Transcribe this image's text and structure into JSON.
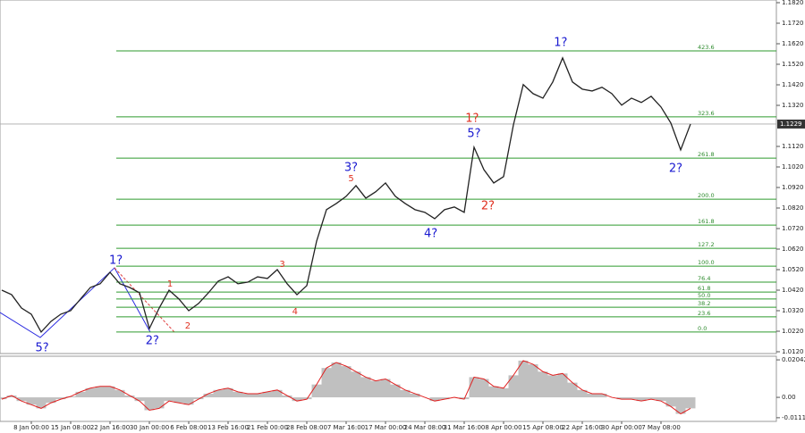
{
  "chart_data": {
    "type": "line",
    "color": "#222222",
    "categories": [
      null,
      null,
      null,
      "8 Jan 00:00",
      null,
      null,
      null,
      "15 Jan 08:00",
      null,
      null,
      null,
      "22 Jan 16:00",
      null,
      null,
      null,
      "30 Jan 00:00",
      null,
      null,
      null,
      "6 Feb 08:00",
      null,
      null,
      null,
      "13 Feb 16:00",
      null,
      null,
      null,
      "21 Feb 00:00",
      null,
      null,
      null,
      "28 Feb 08:00",
      null,
      null,
      null,
      "7 Mar 16:00",
      null,
      null,
      null,
      "17 Mar 00:00",
      null,
      null,
      null,
      "24 Mar 08:00",
      null,
      null,
      null,
      "31 Mar 16:00",
      null,
      null,
      null,
      "8 Apr 00:00",
      null,
      null,
      null,
      "15 Apr 08:00",
      null,
      null,
      null,
      "22 Apr 16:00",
      null,
      null,
      null,
      "30 Apr 00:00",
      null,
      null,
      null,
      "7 May 08:00",
      null,
      null,
      null
    ],
    "values": [
      1.042,
      1.0398,
      1.0333,
      1.0303,
      1.0216,
      1.0268,
      1.0303,
      1.032,
      1.0377,
      1.0433,
      1.0451,
      1.0507,
      1.0451,
      1.0433,
      1.0407,
      1.0233,
      1.0333,
      1.042,
      1.0377,
      1.032,
      1.0355,
      1.0407,
      1.0464,
      1.0485,
      1.0451,
      1.0459,
      1.0485,
      1.0477,
      1.052,
      1.0451,
      1.0398,
      1.0442,
      1.0659,
      1.0812,
      1.0842,
      1.0877,
      1.0929,
      1.0868,
      1.0899,
      1.0942,
      1.0877,
      1.0842,
      1.0812,
      1.0799,
      1.0768,
      1.0812,
      1.0825,
      1.0799,
      1.1116,
      1.1007,
      1.0942,
      1.0973,
      1.1225,
      1.1421,
      1.1377,
      1.1355,
      1.1434,
      1.1551,
      1.1434,
      1.1399,
      1.139,
      1.1408,
      1.1377,
      1.1321,
      1.1355,
      1.1334,
      1.1364,
      1.1312,
      1.1234,
      1.1103,
      1.1229
    ],
    "ylim": [
      1.012,
      1.182
    ],
    "yticks": [
      {
        "value": 1.012,
        "label": "1.0120"
      },
      {
        "value": 1.022,
        "label": "1.0220"
      },
      {
        "value": 1.032,
        "label": "1.0320"
      },
      {
        "value": 1.042,
        "label": "1.0420"
      },
      {
        "value": 1.052,
        "label": "1.0520"
      },
      {
        "value": 1.062,
        "label": "1.0620"
      },
      {
        "value": 1.072,
        "label": "1.0720"
      },
      {
        "value": 1.082,
        "label": "1.0820"
      },
      {
        "value": 1.092,
        "label": "1.0920"
      },
      {
        "value": 1.102,
        "label": "1.1020"
      },
      {
        "value": 1.112,
        "label": "1.1120"
      },
      {
        "value": 1.132,
        "label": "1.1320"
      },
      {
        "value": 1.142,
        "label": "1.1420"
      },
      {
        "value": 1.152,
        "label": "1.1520"
      },
      {
        "value": 1.162,
        "label": "1.1620"
      },
      {
        "value": 1.172,
        "label": "1.1720"
      },
      {
        "value": 1.182,
        "label": "1.1820"
      }
    ],
    "last_price": {
      "value": 1.1229,
      "label": "1.1229"
    },
    "fib_color": "#2e9a2e",
    "fib_levels": [
      {
        "label": "423.6",
        "price": 1.1585
      },
      {
        "label": "323.6",
        "price": 1.1264
      },
      {
        "label": "261.8",
        "price": 1.1063
      },
      {
        "label": "200.0",
        "price": 1.0863
      },
      {
        "label": "161.8",
        "price": 1.0737
      },
      {
        "label": "127.2",
        "price": 1.0624
      },
      {
        "label": "100.0",
        "price": 1.0537
      },
      {
        "label": "76.4",
        "price": 1.0459
      },
      {
        "label": "61.8",
        "price": 1.0411
      },
      {
        "label": "50.0",
        "price": 1.0377
      },
      {
        "label": "38.2",
        "price": 1.0337
      },
      {
        "label": "23.6",
        "price": 1.029
      },
      {
        "label": "0.0",
        "price": 1.0216
      }
    ],
    "annotations": [
      {
        "text": "5?",
        "color": "#1a1ad0",
        "index": 4.1,
        "price": 1.0137
      },
      {
        "text": "1?",
        "color": "#1a1ad0",
        "index": 11.6,
        "price": 1.0563
      },
      {
        "text": "2?",
        "color": "#1a1ad0",
        "index": 15.3,
        "price": 1.0172
      },
      {
        "text": "1",
        "color": "#e03020",
        "index": 17.1,
        "price": 1.045
      },
      {
        "text": "2",
        "color": "#e03020",
        "index": 18.9,
        "price": 1.0246
      },
      {
        "text": "3",
        "color": "#e03020",
        "index": 28.5,
        "price": 1.0546
      },
      {
        "text": "4",
        "color": "#e03020",
        "index": 29.8,
        "price": 1.0316
      },
      {
        "text": "3?",
        "color": "#1a1ad0",
        "index": 35.5,
        "price": 1.1016
      },
      {
        "text": "5",
        "color": "#e03020",
        "index": 35.5,
        "price": 1.0963
      },
      {
        "text": "4?",
        "color": "#1a1ad0",
        "index": 43.6,
        "price": 1.0694
      },
      {
        "text": "5?",
        "color": "#1a1ad0",
        "index": 48,
        "price": 1.1181
      },
      {
        "text": "1?",
        "color": "#e03020",
        "index": 47.8,
        "price": 1.1255
      },
      {
        "text": "2?",
        "color": "#e03020",
        "index": 49.4,
        "price": 1.0829
      },
      {
        "text": "1?",
        "color": "#1a1ad0",
        "index": 56.8,
        "price": 1.1624
      },
      {
        "text": "2?",
        "color": "#1a1ad0",
        "index": 68.5,
        "price": 1.1011
      }
    ],
    "oscillator": {
      "bar_color": "#c0c0c0",
      "line_color": "#e02020",
      "values": [
        -0.001,
        0.001,
        -0.002,
        -0.004,
        -0.006,
        -0.003,
        -0.001,
        0.0005,
        0.003,
        0.005,
        0.006,
        0.006,
        0.004,
        0.001,
        -0.002,
        -0.007,
        -0.006,
        -0.002,
        -0.003,
        -0.004,
        -0.001,
        0.002,
        0.004,
        0.005,
        0.003,
        0.002,
        0.002,
        0.003,
        0.004,
        0.001,
        -0.002,
        -0.001,
        0.007,
        0.016,
        0.019,
        0.017,
        0.014,
        0.011,
        0.009,
        0.01,
        0.007,
        0.004,
        0.002,
        0,
        -0.002,
        -0.001,
        0,
        -0.001,
        0.011,
        0.01,
        0.006,
        0.005,
        0.012,
        0.02,
        0.018,
        0.014,
        0.012,
        0.013,
        0.008,
        0.004,
        0.002,
        0.002,
        0,
        -0.001,
        -0.001,
        -0.002,
        -0.001,
        -0.002,
        -0.005,
        -0.009,
        -0.006
      ],
      "ylim": [
        -0.0131,
        0.0224
      ],
      "yticks": [
        0.02042,
        {
          "value": 0,
          "label": "0.00"
        },
        -0.0111
      ]
    }
  }
}
